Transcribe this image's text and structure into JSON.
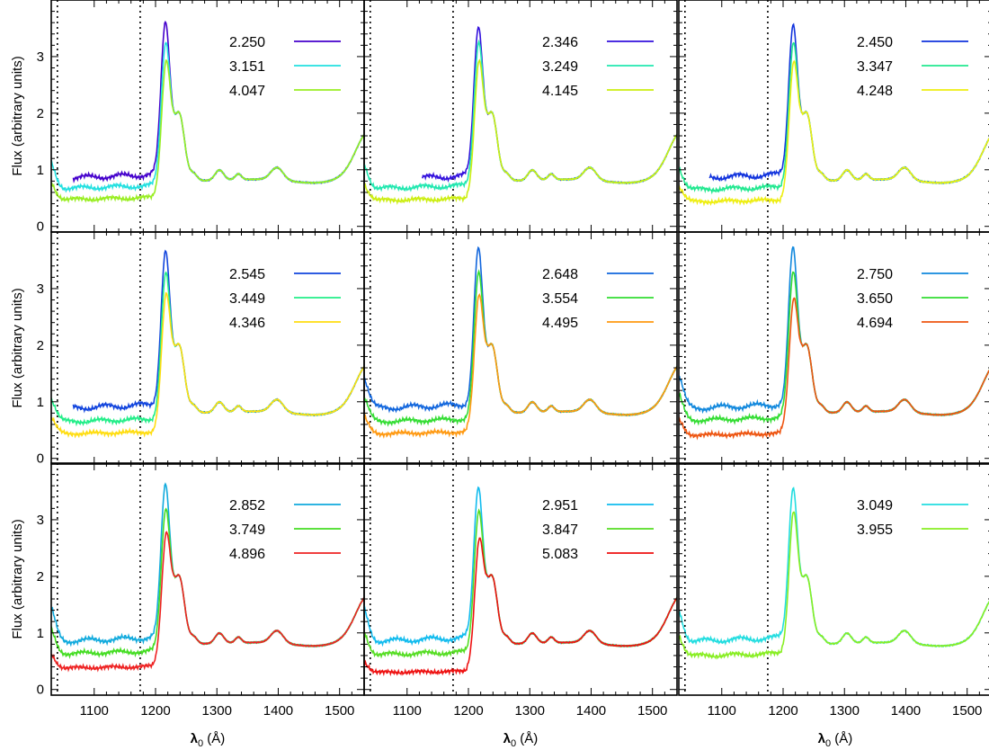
{
  "figure": {
    "ylabel": "Flux (arbitrary units)",
    "xlabel_main": "λ",
    "xlabel_sub": "0",
    "xlabel_unit": "(Å)"
  },
  "chart_data": {
    "type": "line",
    "xlim": [
      1030,
      1540
    ],
    "ylim": [
      -0.1,
      4.0
    ],
    "xticks": [
      1100,
      1200,
      1300,
      1400,
      1500
    ],
    "yticks": [
      0,
      1,
      2,
      3
    ],
    "vlines": [
      1040,
      1175
    ],
    "grid": false,
    "legend_position": "top-right",
    "panels": [
      {
        "series": [
          {
            "name": "2.250",
            "color": "#4400cc",
            "xstart": 1065,
            "blue_level": 1.08
          },
          {
            "name": "3.151",
            "color": "#22e0e0",
            "xstart": 1030,
            "blue_level": 0.85
          },
          {
            "name": "4.047",
            "color": "#99ee22",
            "xstart": 1030,
            "blue_level": 0.6
          }
        ]
      },
      {
        "series": [
          {
            "name": "2.346",
            "color": "#3311dd",
            "xstart": 1125,
            "blue_level": 1.05
          },
          {
            "name": "3.249",
            "color": "#22e8b0",
            "xstart": 1030,
            "blue_level": 0.85
          },
          {
            "name": "4.145",
            "color": "#ccee11",
            "xstart": 1030,
            "blue_level": 0.58
          }
        ]
      },
      {
        "series": [
          {
            "name": "2.450",
            "color": "#1133dd",
            "xstart": 1080,
            "blue_level": 1.08
          },
          {
            "name": "3.347",
            "color": "#22e890",
            "xstart": 1030,
            "blue_level": 0.82
          },
          {
            "name": "4.248",
            "color": "#eeee11",
            "xstart": 1030,
            "blue_level": 0.55
          }
        ]
      },
      {
        "series": [
          {
            "name": "2.545",
            "color": "#1144dd",
            "xstart": 1065,
            "blue_level": 1.12
          },
          {
            "name": "3.449",
            "color": "#22ee88",
            "xstart": 1030,
            "blue_level": 0.82
          },
          {
            "name": "4.346",
            "color": "#ffdd11",
            "xstart": 1030,
            "blue_level": 0.55
          }
        ]
      },
      {
        "series": [
          {
            "name": "2.648",
            "color": "#1166dd",
            "xstart": 1030,
            "blue_level": 1.12
          },
          {
            "name": "3.554",
            "color": "#33dd33",
            "xstart": 1030,
            "blue_level": 0.82
          },
          {
            "name": "4.495",
            "color": "#ff9911",
            "xstart": 1030,
            "blue_level": 0.55
          }
        ]
      },
      {
        "series": [
          {
            "name": "2.750",
            "color": "#1188dd",
            "xstart": 1030,
            "blue_level": 1.12
          },
          {
            "name": "3.650",
            "color": "#33dd33",
            "xstart": 1030,
            "blue_level": 0.85
          },
          {
            "name": "4.694",
            "color": "#ee5511",
            "xstart": 1030,
            "blue_level": 0.52
          }
        ]
      },
      {
        "series": [
          {
            "name": "2.852",
            "color": "#11aadd",
            "xstart": 1030,
            "blue_level": 1.08
          },
          {
            "name": "3.749",
            "color": "#44dd22",
            "xstart": 1030,
            "blue_level": 0.8
          },
          {
            "name": "4.896",
            "color": "#ee2222",
            "xstart": 1030,
            "blue_level": 0.48
          }
        ]
      },
      {
        "series": [
          {
            "name": "2.951",
            "color": "#11bbee",
            "xstart": 1030,
            "blue_level": 1.08
          },
          {
            "name": "3.847",
            "color": "#55dd22",
            "xstart": 1030,
            "blue_level": 0.78
          },
          {
            "name": "5.083",
            "color": "#ee1111",
            "xstart": 1030,
            "blue_level": 0.38
          }
        ]
      },
      {
        "series": [
          {
            "name": "3.049",
            "color": "#22dde0",
            "xstart": 1030,
            "blue_level": 1.08
          },
          {
            "name": "3.955",
            "color": "#88ee22",
            "xstart": 1030,
            "blue_level": 0.75
          }
        ]
      }
    ]
  }
}
